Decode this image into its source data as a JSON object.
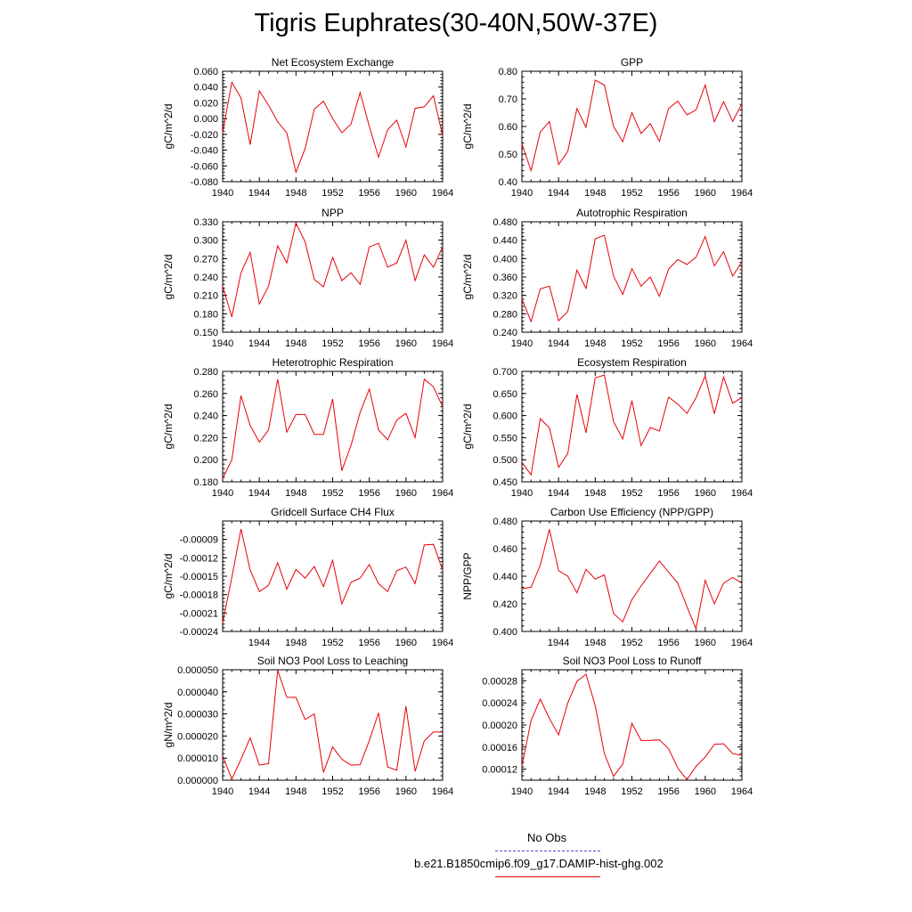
{
  "page": {
    "title": "Tigris Euphrates(30-40N,50W-37E)"
  },
  "legend": {
    "obs_label": "No Obs",
    "obs_color": "#4a4ad9",
    "model_label": "b.e21.B1850cmip6.f09_g17.DAMIP-hist-ghg.002",
    "model_color": "#e8000b"
  },
  "chart_data": [
    {
      "type": "line",
      "title": "Net Ecosystem Exchange",
      "ylabel": "gC/m^2/d",
      "xlim": [
        1940,
        1964
      ],
      "ylim": [
        -0.08,
        0.06
      ],
      "yticks": [
        -0.08,
        -0.06,
        -0.04,
        -0.02,
        0.0,
        0.02,
        0.04,
        0.06
      ],
      "ytick_labels": [
        "-0.080",
        "-0.060",
        "-0.040",
        "-0.020",
        "0.000",
        "0.020",
        "0.040",
        "0.060"
      ],
      "xticks": [
        1940,
        1944,
        1948,
        1952,
        1956,
        1960,
        1964
      ],
      "series": [
        {
          "color": "#e8000b",
          "x": [
            1940,
            1941,
            1942,
            1943,
            1944,
            1945,
            1946,
            1947,
            1948,
            1949,
            1950,
            1951,
            1952,
            1953,
            1954,
            1955,
            1956,
            1957,
            1958,
            1959,
            1960,
            1961,
            1962,
            1963,
            1964
          ],
          "values": [
            -0.018,
            0.046,
            0.026,
            -0.033,
            0.035,
            0.017,
            -0.004,
            -0.018,
            -0.068,
            -0.038,
            0.012,
            0.022,
            0.0,
            -0.018,
            -0.007,
            0.033,
            -0.01,
            -0.049,
            -0.014,
            -0.002,
            -0.036,
            0.013,
            0.015,
            0.029,
            -0.022
          ]
        }
      ]
    },
    {
      "type": "line",
      "title": "GPP",
      "ylabel": "gC/m^2/d",
      "xlim": [
        1940,
        1964
      ],
      "ylim": [
        0.4,
        0.8
      ],
      "yticks": [
        0.4,
        0.5,
        0.6,
        0.7,
        0.8
      ],
      "ytick_labels": [
        "0.40",
        "0.50",
        "0.60",
        "0.70",
        "0.80"
      ],
      "xticks": [
        1940,
        1944,
        1948,
        1952,
        1956,
        1960,
        1964
      ],
      "series": [
        {
          "color": "#e8000b",
          "x": [
            1940,
            1941,
            1942,
            1943,
            1944,
            1945,
            1946,
            1947,
            1948,
            1949,
            1950,
            1951,
            1952,
            1953,
            1954,
            1955,
            1956,
            1957,
            1958,
            1959,
            1960,
            1961,
            1962,
            1963,
            1964
          ],
          "values": [
            0.537,
            0.44,
            0.58,
            0.618,
            0.462,
            0.51,
            0.665,
            0.597,
            0.768,
            0.75,
            0.6,
            0.545,
            0.65,
            0.575,
            0.61,
            0.546,
            0.665,
            0.692,
            0.642,
            0.66,
            0.75,
            0.617,
            0.69,
            0.618,
            0.683
          ]
        }
      ]
    },
    {
      "type": "line",
      "title": "NPP",
      "ylabel": "gC/m^2/d",
      "xlim": [
        1940,
        1964
      ],
      "ylim": [
        0.15,
        0.33
      ],
      "yticks": [
        0.15,
        0.18,
        0.21,
        0.24,
        0.27,
        0.3,
        0.33
      ],
      "ytick_labels": [
        "0.150",
        "0.180",
        "0.210",
        "0.240",
        "0.270",
        "0.300",
        "0.330"
      ],
      "xticks": [
        1940,
        1944,
        1948,
        1952,
        1956,
        1960,
        1964
      ],
      "series": [
        {
          "color": "#e8000b",
          "x": [
            1940,
            1941,
            1942,
            1943,
            1944,
            1945,
            1946,
            1947,
            1948,
            1949,
            1950,
            1951,
            1952,
            1953,
            1954,
            1955,
            1956,
            1957,
            1958,
            1959,
            1960,
            1961,
            1962,
            1963,
            1964
          ],
          "values": [
            0.225,
            0.175,
            0.247,
            0.28,
            0.196,
            0.225,
            0.291,
            0.263,
            0.328,
            0.297,
            0.236,
            0.224,
            0.272,
            0.234,
            0.247,
            0.228,
            0.289,
            0.295,
            0.256,
            0.263,
            0.3,
            0.234,
            0.276,
            0.256,
            0.289
          ]
        }
      ]
    },
    {
      "type": "line",
      "title": "Autotrophic Respiration",
      "ylabel": "gC/m^2/d",
      "xlim": [
        1940,
        1964
      ],
      "ylim": [
        0.24,
        0.48
      ],
      "yticks": [
        0.24,
        0.28,
        0.32,
        0.36,
        0.4,
        0.44,
        0.48
      ],
      "ytick_labels": [
        "0.240",
        "0.280",
        "0.320",
        "0.360",
        "0.400",
        "0.440",
        "0.480"
      ],
      "xticks": [
        1940,
        1944,
        1948,
        1952,
        1956,
        1960,
        1964
      ],
      "series": [
        {
          "color": "#e8000b",
          "x": [
            1940,
            1941,
            1942,
            1943,
            1944,
            1945,
            1946,
            1947,
            1948,
            1949,
            1950,
            1951,
            1952,
            1953,
            1954,
            1955,
            1956,
            1957,
            1958,
            1959,
            1960,
            1961,
            1962,
            1963,
            1964
          ],
          "values": [
            0.312,
            0.263,
            0.334,
            0.34,
            0.265,
            0.285,
            0.375,
            0.335,
            0.443,
            0.451,
            0.362,
            0.322,
            0.378,
            0.34,
            0.36,
            0.318,
            0.377,
            0.398,
            0.387,
            0.403,
            0.448,
            0.384,
            0.415,
            0.362,
            0.393
          ]
        }
      ]
    },
    {
      "type": "line",
      "title": "Heterotrophic Respiration",
      "ylabel": "gC/m^2/d",
      "xlim": [
        1940,
        1964
      ],
      "ylim": [
        0.18,
        0.28
      ],
      "yticks": [
        0.18,
        0.2,
        0.22,
        0.24,
        0.26,
        0.28
      ],
      "ytick_labels": [
        "0.180",
        "0.200",
        "0.220",
        "0.240",
        "0.260",
        "0.280"
      ],
      "xticks": [
        1940,
        1944,
        1948,
        1952,
        1956,
        1960,
        1964
      ],
      "series": [
        {
          "color": "#e8000b",
          "x": [
            1940,
            1941,
            1942,
            1943,
            1944,
            1945,
            1946,
            1947,
            1948,
            1949,
            1950,
            1951,
            1952,
            1953,
            1954,
            1955,
            1956,
            1957,
            1958,
            1959,
            1960,
            1961,
            1962,
            1963,
            1964
          ],
          "values": [
            0.183,
            0.2,
            0.258,
            0.231,
            0.216,
            0.227,
            0.273,
            0.225,
            0.241,
            0.241,
            0.223,
            0.223,
            0.255,
            0.19,
            0.213,
            0.243,
            0.264,
            0.227,
            0.218,
            0.236,
            0.242,
            0.22,
            0.273,
            0.266,
            0.248
          ]
        }
      ]
    },
    {
      "type": "line",
      "title": "Ecosystem Respiration",
      "ylabel": "gC/m^2/d",
      "xlim": [
        1940,
        1964
      ],
      "ylim": [
        0.45,
        0.7
      ],
      "yticks": [
        0.45,
        0.5,
        0.55,
        0.6,
        0.65,
        0.7
      ],
      "ytick_labels": [
        "0.450",
        "0.500",
        "0.550",
        "0.600",
        "0.650",
        "0.700"
      ],
      "xticks": [
        1940,
        1944,
        1948,
        1952,
        1956,
        1960,
        1964
      ],
      "series": [
        {
          "color": "#e8000b",
          "x": [
            1940,
            1941,
            1942,
            1943,
            1944,
            1945,
            1946,
            1947,
            1948,
            1949,
            1950,
            1951,
            1952,
            1953,
            1954,
            1955,
            1956,
            1957,
            1958,
            1959,
            1960,
            1961,
            1962,
            1963,
            1964
          ],
          "values": [
            0.494,
            0.466,
            0.593,
            0.572,
            0.483,
            0.514,
            0.648,
            0.561,
            0.685,
            0.692,
            0.586,
            0.547,
            0.634,
            0.532,
            0.573,
            0.565,
            0.642,
            0.626,
            0.605,
            0.64,
            0.69,
            0.604,
            0.687,
            0.628,
            0.641
          ]
        }
      ]
    },
    {
      "type": "line",
      "title": "Gridcell Surface CH4 Flux",
      "ylabel": "gC/m^2/d",
      "xlim": [
        1940,
        1964
      ],
      "ylim": [
        -0.00024,
        -6e-05
      ],
      "yticks": [
        -0.00024,
        -0.00021,
        -0.00018,
        -0.00015,
        -0.00012,
        -9e-05
      ],
      "ytick_labels": [
        "-0.00024",
        "-0.00021",
        "-0.00018",
        "-0.00015",
        "-0.00012",
        "-0.00009"
      ],
      "xticks": [
        1944,
        1948,
        1952,
        1956,
        1960,
        1964
      ],
      "series": [
        {
          "color": "#e8000b",
          "x": [
            1940,
            1941,
            1942,
            1943,
            1944,
            1945,
            1946,
            1947,
            1948,
            1949,
            1950,
            1951,
            1952,
            1953,
            1954,
            1955,
            1956,
            1957,
            1958,
            1959,
            1960,
            1961,
            1962,
            1963,
            1964
          ],
          "values": [
            -0.000226,
            -0.000152,
            -7.3e-05,
            -0.00014,
            -0.000175,
            -0.000165,
            -0.000128,
            -0.000171,
            -0.000139,
            -0.000153,
            -0.000134,
            -0.000167,
            -0.000124,
            -0.000195,
            -0.00016,
            -0.000153,
            -0.000131,
            -0.000162,
            -0.000175,
            -0.000141,
            -0.000135,
            -0.000162,
            -9.9e-05,
            -9.8e-05,
            -0.00014
          ]
        }
      ]
    },
    {
      "type": "line",
      "title": "Carbon Use Efficiency (NPP/GPP)",
      "ylabel": "NPP/GPP",
      "xlim": [
        1940,
        1964
      ],
      "ylim": [
        0.4,
        0.48
      ],
      "yticks": [
        0.4,
        0.42,
        0.44,
        0.46,
        0.48
      ],
      "ytick_labels": [
        "0.400",
        "0.420",
        "0.440",
        "0.460",
        "0.480"
      ],
      "xticks": [
        1944,
        1948,
        1952,
        1956,
        1960,
        1964
      ],
      "series": [
        {
          "color": "#e8000b",
          "x": [
            1940,
            1941,
            1942,
            1943,
            1944,
            1945,
            1946,
            1947,
            1948,
            1949,
            1950,
            1951,
            1952,
            1953,
            1954,
            1955,
            1956,
            1957,
            1958,
            1959,
            1960,
            1961,
            1962,
            1963,
            1964
          ],
          "values": [
            0.431,
            0.432,
            0.448,
            0.474,
            0.444,
            0.44,
            0.428,
            0.445,
            0.438,
            0.441,
            0.413,
            0.407,
            0.423,
            0.433,
            0.442,
            0.451,
            0.443,
            0.435,
            0.418,
            0.402,
            0.437,
            0.42,
            0.435,
            0.439,
            0.435
          ]
        }
      ]
    },
    {
      "type": "line",
      "title": "Soil NO3 Pool Loss to Leaching",
      "ylabel": "gN/m^2/d",
      "xlim": [
        1940,
        1964
      ],
      "ylim": [
        0.0,
        5e-05
      ],
      "yticks": [
        0.0,
        1e-05,
        2e-05,
        3e-05,
        4e-05,
        5e-05
      ],
      "ytick_labels": [
        "0.000000",
        "0.000010",
        "0.000020",
        "0.000030",
        "0.000040",
        "0.000050"
      ],
      "xticks": [
        1940,
        1944,
        1948,
        1952,
        1956,
        1960,
        1964
      ],
      "series": [
        {
          "color": "#e8000b",
          "x": [
            1940,
            1941,
            1942,
            1943,
            1944,
            1945,
            1946,
            1947,
            1948,
            1949,
            1950,
            1951,
            1952,
            1953,
            1954,
            1955,
            1956,
            1957,
            1958,
            1959,
            1960,
            1961,
            1962,
            1963,
            1964
          ],
          "values": [
            1.1e-05,
            5e-07,
            9.5e-06,
            1.92e-05,
            6.8e-06,
            7.5e-06,
            4.98e-05,
            3.75e-05,
            3.75e-05,
            2.75e-05,
            3e-05,
            3.5e-06,
            1.5e-05,
            9.5e-06,
            6.8e-06,
            7e-06,
            1.8e-05,
            3.05e-05,
            6e-06,
            4.5e-06,
            3.35e-05,
            4e-06,
            1.78e-05,
            2.18e-05,
            2.18e-05
          ]
        }
      ]
    },
    {
      "type": "line",
      "title": "Soil NO3 Pool Loss to Runoff",
      "ylabel": "",
      "xlim": [
        1940,
        1964
      ],
      "ylim": [
        0.0001,
        0.0003
      ],
      "yticks": [
        0.00012,
        0.00016,
        0.0002,
        0.00024,
        0.00028
      ],
      "ytick_labels": [
        "0.00012",
        "0.00016",
        "0.00020",
        "0.00024",
        "0.00028"
      ],
      "xticks": [
        1940,
        1944,
        1948,
        1952,
        1956,
        1960,
        1964
      ],
      "series": [
        {
          "color": "#e8000b",
          "x": [
            1940,
            1941,
            1942,
            1943,
            1944,
            1945,
            1946,
            1947,
            1948,
            1949,
            1950,
            1951,
            1952,
            1953,
            1954,
            1955,
            1956,
            1957,
            1958,
            1959,
            1960,
            1961,
            1962,
            1963,
            1964
          ],
          "values": [
            0.000125,
            0.000208,
            0.000247,
            0.000212,
            0.000182,
            0.00024,
            0.000279,
            0.000292,
            0.000235,
            0.000148,
            0.000107,
            0.000129,
            0.000203,
            0.000172,
            0.000172,
            0.000173,
            0.000157,
            0.000122,
            0.000101,
            0.000125,
            0.000142,
            0.000165,
            0.000166,
            0.000148,
            0.000145
          ]
        }
      ]
    }
  ]
}
